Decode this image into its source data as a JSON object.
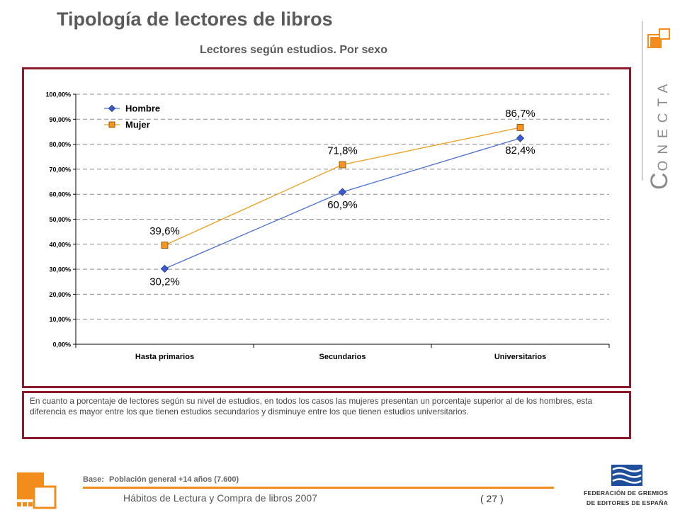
{
  "header": {
    "title": "Tipología de lectores de libros",
    "subtitle": "Lectores según estudios. Por sexo"
  },
  "brand": {
    "big_letter": "C",
    "rest": "ONECTA",
    "square_color": "#f28c1d"
  },
  "colors": {
    "frame": "#8b1a2b",
    "hombre_line": "#4a6fd0",
    "hombre_marker": "#3b5bd6",
    "mujer_line": "#e8a020",
    "mujer_marker": "#f7941d",
    "accent": "#f28c1d"
  },
  "chart_data": {
    "type": "line",
    "categories": [
      "Hasta primarios",
      "Secundarios",
      "Universitarios"
    ],
    "series": [
      {
        "name": "Hombre",
        "values": [
          30.2,
          60.9,
          82.4
        ],
        "labels": [
          "30,2%",
          "60,9%",
          "82,4%"
        ],
        "marker": "diamond"
      },
      {
        "name": "Mujer",
        "values": [
          39.6,
          71.8,
          86.7
        ],
        "labels": [
          "39,6%",
          "71,8%",
          "86,7%"
        ],
        "marker": "square"
      }
    ],
    "yticks": [
      "0,00%",
      "10,00%",
      "20,00%",
      "30,00%",
      "40,00%",
      "50,00%",
      "60,00%",
      "70,00%",
      "80,00%",
      "90,00%",
      "100,00%"
    ],
    "ylim": [
      0,
      100
    ],
    "grid": true,
    "legend_position": "top-left"
  },
  "note": {
    "text": "En cuanto a porcentaje de lectores según su nivel de estudios, en todos los casos las mujeres presentan un porcentaje superior al de los hombres, esta diferencia es mayor entre los que tienen estudios secundarios y disminuye entre los que tienen estudios universitarios."
  },
  "footer": {
    "base_label": "Base:",
    "base_value": "Población general +14 años (7.600)",
    "doc_title": "Hábitos de Lectura y Compra de libros 2007",
    "page": "( 27 )"
  },
  "federation": {
    "line1": "FEDERACIÓN DE GREMIOS",
    "line2": "DE EDITORES DE ESPAÑA"
  }
}
